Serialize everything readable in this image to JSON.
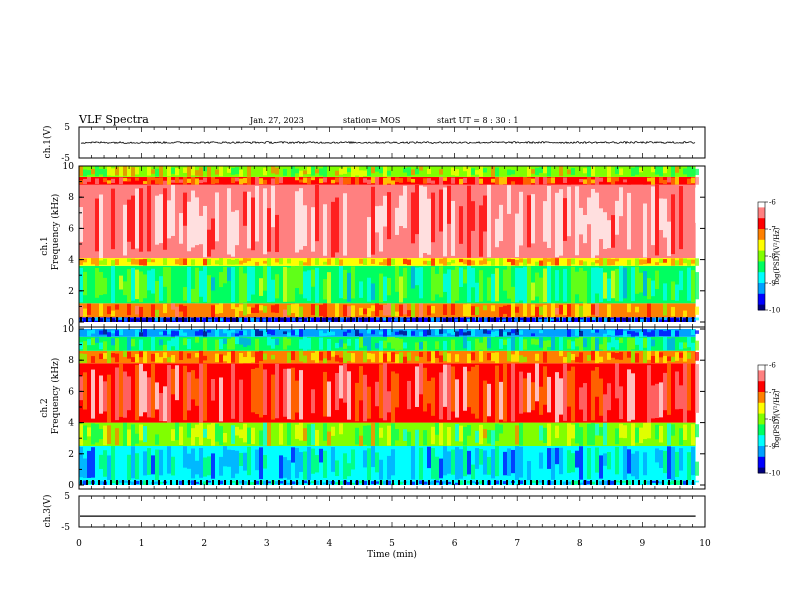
{
  "header": {
    "title": "VLF Spectra",
    "date": "Jan. 27, 2023",
    "station": "station= MOS",
    "start": "start  UT =  8 : 30 : 1"
  },
  "colors": {
    "scale": [
      "#000080",
      "#0000ff",
      "#00a0ff",
      "#00ffff",
      "#00ff60",
      "#80ff00",
      "#ffff00",
      "#ff8000",
      "#ff0000",
      "#ff8080",
      "#ffffff"
    ],
    "waveform": "#000000",
    "axes": "#000000"
  },
  "chart_data": {
    "type": "heatmap",
    "x_axis": {
      "label": "Time  (min)",
      "range": [
        0,
        10
      ],
      "ticks": [
        "0",
        "1",
        "2",
        "3",
        "4",
        "5",
        "6",
        "7",
        "8",
        "9",
        "10"
      ],
      "data_end": 9.85
    },
    "panels": [
      {
        "name": "waveform1",
        "type": "line",
        "ylabel": "ch.1(V)",
        "ylim": [
          -5,
          5
        ],
        "yticks": [
          "5",
          "-5"
        ],
        "level": 0.0,
        "noise_amplitude": 0.3
      },
      {
        "name": "spectrogram1",
        "type": "heatmap",
        "ylabel_top": "ch.1",
        "ylabel": "Frequency  (kHz)",
        "ylim": [
          0,
          10
        ],
        "yticks": [
          "10",
          "8",
          "6",
          "4",
          "2",
          "0"
        ],
        "colorbar": {
          "label": "log(PSD)(V²/Hz)",
          "range": [
            -10,
            -6
          ],
          "ticks": [
            "-6",
            "-7",
            "-8",
            "-9",
            "-10"
          ]
        },
        "bands": [
          {
            "freq_khz": [
              0,
              0.3
            ],
            "log_psd": -9.5
          },
          {
            "freq_khz": [
              0.3,
              1.2
            ],
            "log_psd": -7.2
          },
          {
            "freq_khz": [
              1.2,
              3.6
            ],
            "log_psd": -8.4
          },
          {
            "freq_khz": [
              3.6,
              4.1
            ],
            "log_psd": -7.5
          },
          {
            "freq_khz": [
              4.1,
              8.8
            ],
            "log_psd": -6.3
          },
          {
            "freq_khz": [
              8.8,
              9.3
            ],
            "log_psd": -7.0
          },
          {
            "freq_khz": [
              9.3,
              10
            ],
            "log_psd": -7.9
          }
        ]
      },
      {
        "name": "spectrogram2",
        "type": "heatmap",
        "ylabel_top": "ch.2",
        "ylabel": "Frequency  (kHz)",
        "ylim": [
          0,
          10
        ],
        "yticks": [
          "10",
          "8",
          "6",
          "4",
          "2",
          "0"
        ],
        "colorbar": {
          "label": "log(PSD)(V²/Hz)",
          "range": [
            -10,
            -6
          ],
          "ticks": [
            "-6",
            "-7",
            "-8",
            "-9",
            "-10"
          ]
        },
        "bands": [
          {
            "freq_khz": [
              0,
              0.3
            ],
            "log_psd": -9.0
          },
          {
            "freq_khz": [
              0.3,
              2.5
            ],
            "log_psd": -8.9
          },
          {
            "freq_khz": [
              2.5,
              4.0
            ],
            "log_psd": -8.0
          },
          {
            "freq_khz": [
              4.0,
              7.8
            ],
            "log_psd": -6.7
          },
          {
            "freq_khz": [
              7.8,
              8.6
            ],
            "log_psd": -7.3
          },
          {
            "freq_khz": [
              8.6,
              9.5
            ],
            "log_psd": -8.5
          },
          {
            "freq_khz": [
              9.5,
              10
            ],
            "log_psd": -9.3
          }
        ]
      },
      {
        "name": "waveform3",
        "type": "line",
        "ylabel": "ch.3(V)",
        "ylim": [
          -5,
          5
        ],
        "yticks": [
          "5",
          "-5"
        ],
        "level": -1.5,
        "noise_amplitude": 0.0
      }
    ]
  }
}
